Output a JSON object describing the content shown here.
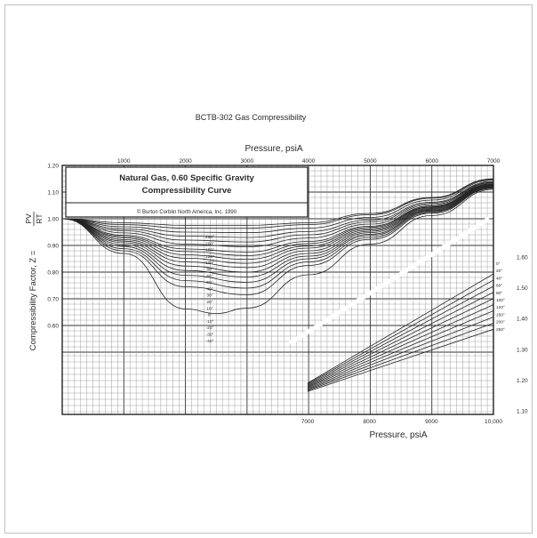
{
  "chart_data": {
    "type": "line",
    "title": "BCTB-302  Gas Compressibility",
    "top_axis_label": "Pressure,  psiA",
    "bottom_axis_label": "Pressure,  psiA",
    "y_label": "Compressibility Factor, Z =",
    "y_formula": {
      "numerator": "PV",
      "denominator": "RT"
    },
    "legend_box": {
      "line1": "Natural  Gas,  0.60  Specific  Gravity",
      "line2": "Compressibility  Curve",
      "credit": "© Burton Corblin North America, Inc.  1990"
    },
    "upper_panel": {
      "x_range": [
        0,
        7000
      ],
      "y_range": [
        0.5,
        1.2
      ],
      "x_tick_labels": [
        "1000",
        "2000",
        "3000",
        "4000",
        "5000",
        "6000",
        "7000"
      ],
      "y_tick_labels": [
        "1.20",
        "1.10",
        "1.00",
        "0.90",
        "0.80",
        "0.70",
        "0.60"
      ],
      "curve_labels": [
        "250°",
        "200°",
        "150°",
        "120°",
        "100°",
        "80°",
        "60°",
        "50°",
        "40°",
        "30°",
        "20°",
        "10°",
        "0°",
        "-10°",
        "-20°",
        "-30°",
        "-40°"
      ],
      "series": [
        {
          "name": "250°",
          "values": [
            [
              0,
              1.0
            ],
            [
              1000,
              0.985
            ],
            [
              2000,
              0.975
            ],
            [
              3000,
              0.975
            ],
            [
              4000,
              0.985
            ],
            [
              5000,
              1.02
            ],
            [
              6000,
              1.08
            ],
            [
              7000,
              1.15
            ]
          ]
        },
        {
          "name": "200°",
          "values": [
            [
              0,
              1.0
            ],
            [
              1000,
              0.978
            ],
            [
              2000,
              0.965
            ],
            [
              3000,
              0.965
            ],
            [
              4000,
              0.978
            ],
            [
              5000,
              1.015
            ],
            [
              6000,
              1.077
            ],
            [
              7000,
              1.148
            ]
          ]
        },
        {
          "name": "150°",
          "values": [
            [
              0,
              1.0
            ],
            [
              1000,
              0.97
            ],
            [
              2000,
              0.95
            ],
            [
              3000,
              0.948
            ],
            [
              4000,
              0.965
            ],
            [
              5000,
              1.005
            ],
            [
              6000,
              1.07
            ],
            [
              7000,
              1.145
            ]
          ]
        },
        {
          "name": "120°",
          "values": [
            [
              0,
              1.0
            ],
            [
              1000,
              0.962
            ],
            [
              2000,
              0.935
            ],
            [
              3000,
              0.93
            ],
            [
              4000,
              0.952
            ],
            [
              5000,
              0.995
            ],
            [
              6000,
              1.062
            ],
            [
              7000,
              1.14
            ]
          ]
        },
        {
          "name": "100°",
          "values": [
            [
              0,
              1.0
            ],
            [
              1000,
              0.955
            ],
            [
              2000,
              0.92
            ],
            [
              3000,
              0.913
            ],
            [
              4000,
              0.94
            ],
            [
              5000,
              0.988
            ],
            [
              6000,
              1.058
            ],
            [
              7000,
              1.137
            ]
          ]
        },
        {
          "name": "80°",
          "values": [
            [
              0,
              1.0
            ],
            [
              1000,
              0.947
            ],
            [
              2000,
              0.905
            ],
            [
              3000,
              0.895
            ],
            [
              4000,
              0.928
            ],
            [
              5000,
              0.98
            ],
            [
              6000,
              1.053
            ],
            [
              7000,
              1.135
            ]
          ]
        },
        {
          "name": "60°",
          "values": [
            [
              0,
              1.0
            ],
            [
              1000,
              0.938
            ],
            [
              2000,
              0.887
            ],
            [
              3000,
              0.875
            ],
            [
              4000,
              0.915
            ],
            [
              5000,
              0.972
            ],
            [
              6000,
              1.048
            ],
            [
              7000,
              1.132
            ]
          ]
        },
        {
          "name": "50°",
          "values": [
            [
              0,
              1.0
            ],
            [
              1000,
              0.933
            ],
            [
              2000,
              0.877
            ],
            [
              3000,
              0.862
            ],
            [
              4000,
              0.907
            ],
            [
              5000,
              0.968
            ],
            [
              6000,
              1.045
            ],
            [
              7000,
              1.13
            ]
          ]
        },
        {
          "name": "40°",
          "values": [
            [
              0,
              1.0
            ],
            [
              1000,
              0.928
            ],
            [
              2000,
              0.865
            ],
            [
              3000,
              0.848
            ],
            [
              4000,
              0.898
            ],
            [
              5000,
              0.963
            ],
            [
              6000,
              1.043
            ],
            [
              7000,
              1.128
            ]
          ]
        },
        {
          "name": "30°",
          "values": [
            [
              0,
              1.0
            ],
            [
              1000,
              0.922
            ],
            [
              2000,
              0.852
            ],
            [
              3000,
              0.833
            ],
            [
              4000,
              0.89
            ],
            [
              5000,
              0.958
            ],
            [
              6000,
              1.04
            ],
            [
              7000,
              1.126
            ]
          ]
        },
        {
          "name": "20°",
          "values": [
            [
              0,
              1.0
            ],
            [
              1000,
              0.916
            ],
            [
              2000,
              0.838
            ],
            [
              3000,
              0.817
            ],
            [
              4000,
              0.88
            ],
            [
              5000,
              0.953
            ],
            [
              6000,
              1.037
            ],
            [
              7000,
              1.124
            ]
          ]
        },
        {
          "name": "10°",
          "values": [
            [
              0,
              1.0
            ],
            [
              1000,
              0.91
            ],
            [
              2000,
              0.823
            ],
            [
              3000,
              0.8
            ],
            [
              4000,
              0.87
            ],
            [
              5000,
              0.948
            ],
            [
              6000,
              1.034
            ],
            [
              7000,
              1.122
            ]
          ]
        },
        {
          "name": "0°",
          "values": [
            [
              0,
              1.0
            ],
            [
              1000,
              0.903
            ],
            [
              2000,
              0.806
            ],
            [
              3000,
              0.782
            ],
            [
              4000,
              0.86
            ],
            [
              5000,
              0.942
            ],
            [
              6000,
              1.031
            ],
            [
              7000,
              1.12
            ]
          ]
        },
        {
          "name": "-10°",
          "values": [
            [
              0,
              1.0
            ],
            [
              1000,
              0.896
            ],
            [
              2000,
              0.788
            ],
            [
              3000,
              0.762
            ],
            [
              4000,
              0.85
            ],
            [
              5000,
              0.937
            ],
            [
              6000,
              1.028
            ],
            [
              7000,
              1.118
            ]
          ]
        },
        {
          "name": "-20°",
          "values": [
            [
              0,
              1.0
            ],
            [
              1000,
              0.888
            ],
            [
              2000,
              0.768
            ],
            [
              3000,
              0.74
            ],
            [
              4000,
              0.838
            ],
            [
              5000,
              0.93
            ],
            [
              6000,
              1.025
            ],
            [
              7000,
              1.116
            ]
          ]
        },
        {
          "name": "-30°",
          "values": [
            [
              0,
              1.0
            ],
            [
              1000,
              0.88
            ],
            [
              2000,
              0.745
            ],
            [
              3000,
              0.715
            ],
            [
              4000,
              0.825
            ],
            [
              5000,
              0.923
            ],
            [
              6000,
              1.021
            ],
            [
              7000,
              1.114
            ]
          ]
        },
        {
          "name": "-40°",
          "values": [
            [
              0,
              1.0
            ],
            [
              1000,
              0.87
            ],
            [
              2000,
              0.662
            ],
            [
              2500,
              0.645
            ],
            [
              3000,
              0.665
            ],
            [
              4000,
              0.79
            ],
            [
              5000,
              0.905
            ],
            [
              6000,
              1.012
            ],
            [
              7000,
              1.11
            ]
          ]
        }
      ]
    },
    "lower_panel": {
      "x_range": [
        7000,
        10000
      ],
      "y_range": [
        1.1,
        1.65
      ],
      "x_tick_labels": [
        "7000",
        "8000",
        "9000",
        "10,000"
      ],
      "y_tick_labels": [
        "1.60",
        "1.50",
        "1.40",
        "1.30",
        "1.20",
        "1.10"
      ],
      "curve_labels": [
        "0°",
        "20°",
        "40°",
        "60°",
        "80°",
        "100°",
        "120°",
        "150°",
        "200°",
        "250°"
      ],
      "series": [
        {
          "name": "0°",
          "values": [
            [
              7000,
              1.19
            ],
            [
              10000,
              1.545
            ]
          ]
        },
        {
          "name": "20°",
          "values": [
            [
              7000,
              1.187
            ],
            [
              10000,
              1.525
            ]
          ]
        },
        {
          "name": "40°",
          "values": [
            [
              7000,
              1.184
            ],
            [
              10000,
              1.505
            ]
          ]
        },
        {
          "name": "60°",
          "values": [
            [
              7000,
              1.181
            ],
            [
              10000,
              1.485
            ]
          ]
        },
        {
          "name": "80°",
          "values": [
            [
              7000,
              1.178
            ],
            [
              10000,
              1.465
            ]
          ]
        },
        {
          "name": "100°",
          "values": [
            [
              7000,
              1.175
            ],
            [
              10000,
              1.445
            ]
          ]
        },
        {
          "name": "120°",
          "values": [
            [
              7000,
              1.172
            ],
            [
              10000,
              1.425
            ]
          ]
        },
        {
          "name": "150°",
          "values": [
            [
              7000,
              1.169
            ],
            [
              10000,
              1.405
            ]
          ]
        },
        {
          "name": "200°",
          "values": [
            [
              7000,
              1.166
            ],
            [
              10000,
              1.385
            ]
          ]
        },
        {
          "name": "250°",
          "values": [
            [
              7000,
              1.163
            ],
            [
              10000,
              1.365
            ]
          ]
        }
      ]
    }
  }
}
